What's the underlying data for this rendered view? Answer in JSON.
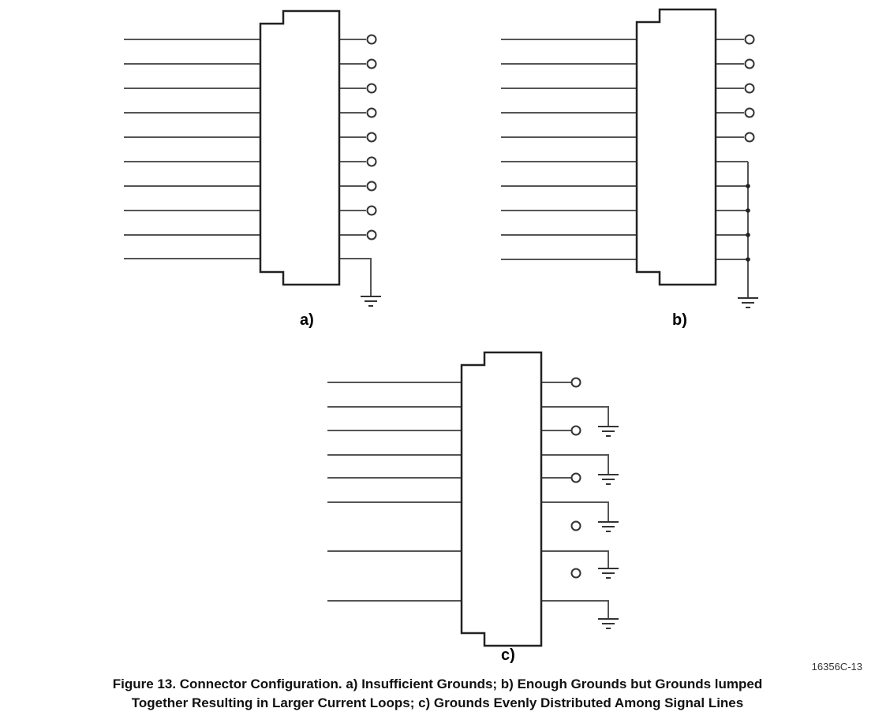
{
  "panels": {
    "a": {
      "label": "a)"
    },
    "b": {
      "label": "b)"
    },
    "c": {
      "label": "c)"
    }
  },
  "figure_id": "16356C-13",
  "caption": {
    "line1": "Figure 13.    Connector Configuration.  a) Insufficient Grounds; b) Enough Grounds but Grounds lumped",
    "line2": "Together Resulting in Larger Current Loops; c) Grounds Evenly Distributed Among Signal Lines"
  }
}
